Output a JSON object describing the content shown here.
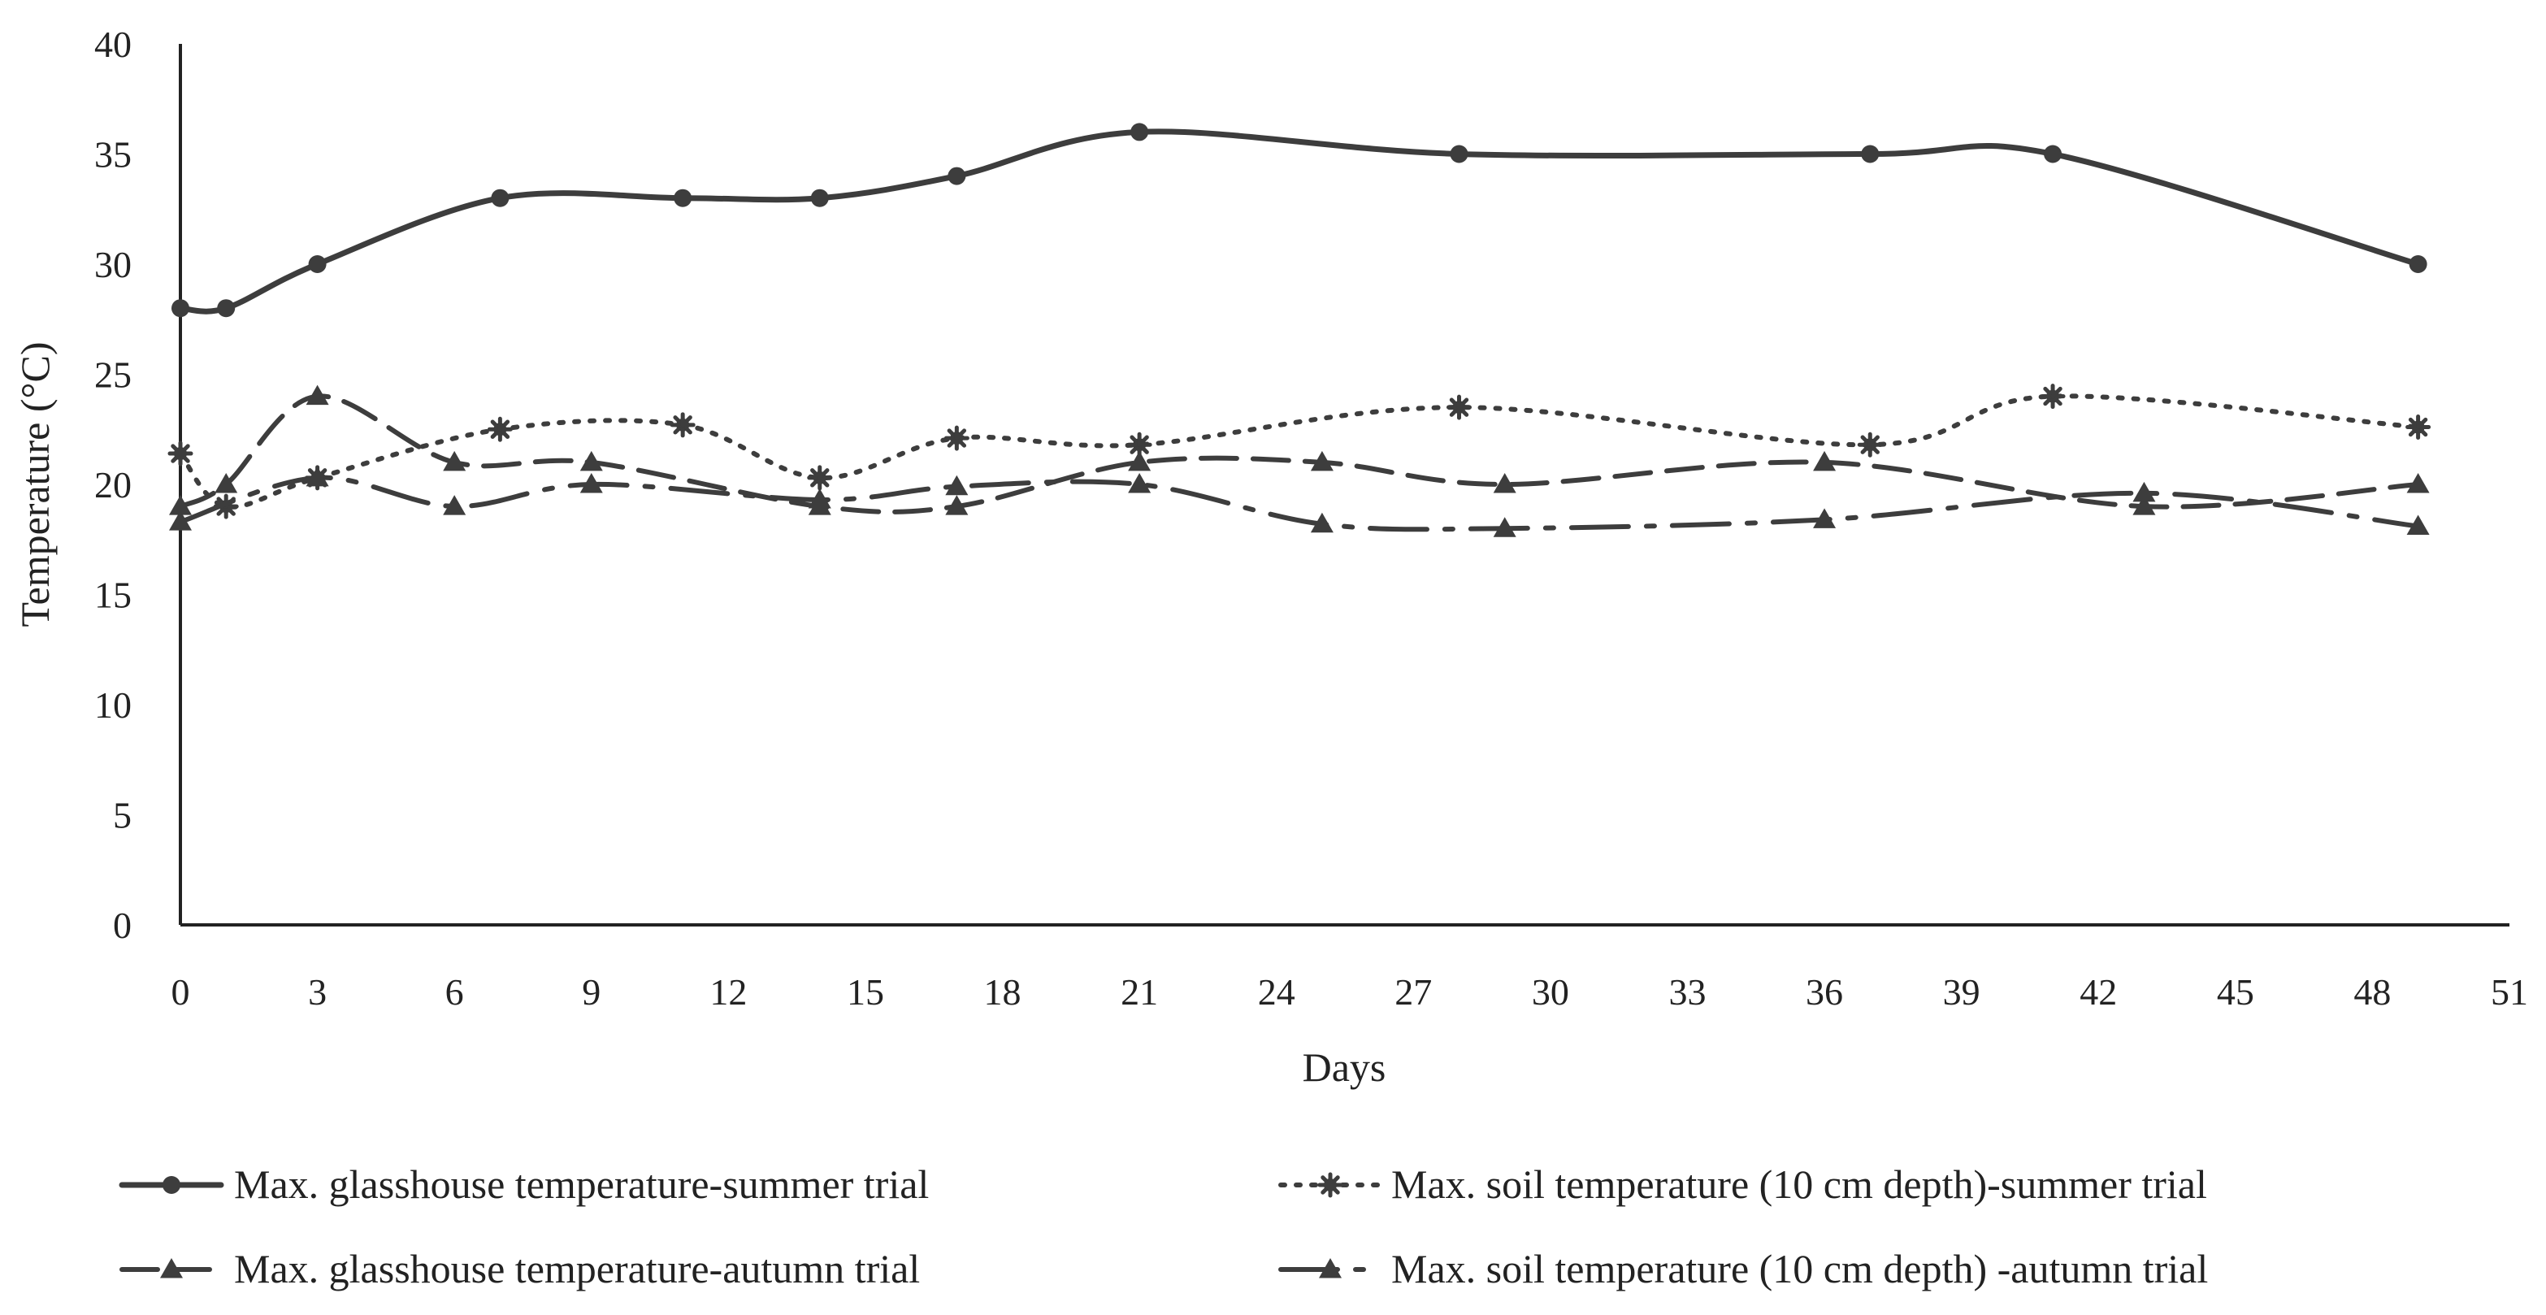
{
  "chart_data": {
    "type": "line",
    "title": "",
    "xlabel": "Days",
    "ylabel": "Temperature (°C)",
    "xlim": [
      0,
      51
    ],
    "ylim": [
      0,
      40
    ],
    "xticks": [
      0,
      3,
      6,
      9,
      12,
      15,
      18,
      21,
      24,
      27,
      30,
      33,
      36,
      39,
      42,
      45,
      48,
      51
    ],
    "yticks": [
      0,
      5,
      10,
      15,
      20,
      25,
      30,
      35,
      40
    ],
    "grid": false,
    "legend_position": "bottom",
    "series": [
      {
        "name": "Max. glasshouse temperature-summer trial",
        "line_style": "solid",
        "marker": "circle",
        "x": [
          0,
          1,
          3,
          7,
          11,
          14,
          17,
          21,
          28,
          37,
          41,
          49
        ],
        "y": [
          28,
          28,
          30,
          33,
          33,
          33,
          34,
          36,
          35,
          35,
          35,
          30
        ]
      },
      {
        "name": "Max. soil temperature (10 cm depth)-summer trial",
        "line_style": "dotted",
        "marker": "asterisk",
        "x": [
          0,
          1,
          3,
          7,
          11,
          14,
          17,
          21,
          28,
          37,
          41,
          49
        ],
        "y": [
          21.4,
          19,
          20.3,
          22.5,
          22.7,
          20.3,
          22.1,
          21.8,
          23.5,
          21.8,
          24,
          22.6
        ]
      },
      {
        "name": "Max. glasshouse temperature-autumn trial",
        "line_style": "dashed",
        "marker": "triangle",
        "x": [
          0,
          1,
          3,
          6,
          9,
          14,
          17,
          21,
          25,
          29,
          36,
          43,
          49
        ],
        "y": [
          19,
          20,
          24,
          21,
          21,
          19,
          19,
          21,
          21,
          20,
          21,
          19,
          20
        ]
      },
      {
        "name": "Max. soil temperature (10 cm depth) -autumn trial",
        "line_style": "dash-dot",
        "marker": "triangle",
        "x": [
          0,
          3,
          6,
          9,
          14,
          17,
          21,
          25,
          29,
          36,
          43,
          49
        ],
        "y": [
          18.3,
          20.3,
          19,
          20,
          19.3,
          19.9,
          20,
          18.2,
          18,
          18.4,
          19.6,
          18.1
        ]
      }
    ]
  }
}
